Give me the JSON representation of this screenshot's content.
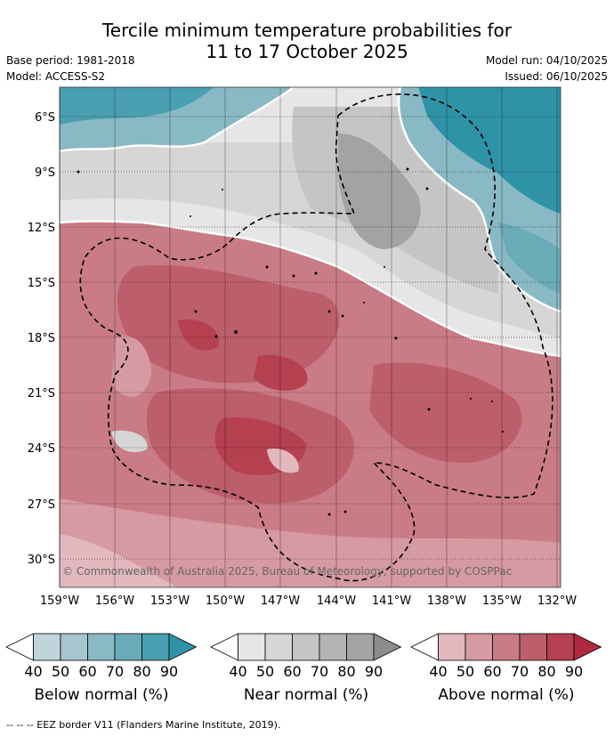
{
  "title_line1": "Tercile minimum temperature probabilities for",
  "title_line2": "11 to 17 October 2025",
  "base_period": "Base period: 1981-2018",
  "model": "Model: ACCESS-S2",
  "model_run": "Model run: 04/10/2025",
  "issued": "Issued: 06/10/2025",
  "copyright": "© Commonwealth of Australia 2025, Bureau of Meteorology, supported by COSPPac",
  "lat_labels": [
    "6°S",
    "9°S",
    "12°S",
    "15°S",
    "18°S",
    "21°S",
    "24°S",
    "27°S",
    "30°S"
  ],
  "lon_labels": [
    "159°W",
    "156°W",
    "153°W",
    "150°W",
    "147°W",
    "144°W",
    "141°W",
    "138°W",
    "135°W",
    "132°W"
  ],
  "colorbars": [
    {
      "label": "Below normal (%)",
      "ticks": [
        "40",
        "50",
        "60",
        "70",
        "80",
        "90"
      ],
      "colors": [
        "#ffffff",
        "#c0d4db",
        "#a5c6ce",
        "#89b9c4",
        "#6aabb8",
        "#4a9fb0",
        "#2f93a7"
      ]
    },
    {
      "label": "Near normal (%)",
      "ticks": [
        "40",
        "50",
        "60",
        "70",
        "80",
        "90"
      ],
      "colors": [
        "#ffffff",
        "#e6e6e6",
        "#d6d6d6",
        "#c5c5c5",
        "#b4b4b4",
        "#a3a3a3",
        "#8c8c8c"
      ]
    },
    {
      "label": "Above normal (%)",
      "ticks": [
        "40",
        "50",
        "60",
        "70",
        "80",
        "90"
      ],
      "colors": [
        "#ffffff",
        "#e2b8be",
        "#d59aa2",
        "#c97c86",
        "#bd5e6b",
        "#b5404f",
        "#b02a3f"
      ]
    }
  ],
  "footer": "--  --  -- EEZ border V11 (Flanders Marine Institute, 2019)."
}
